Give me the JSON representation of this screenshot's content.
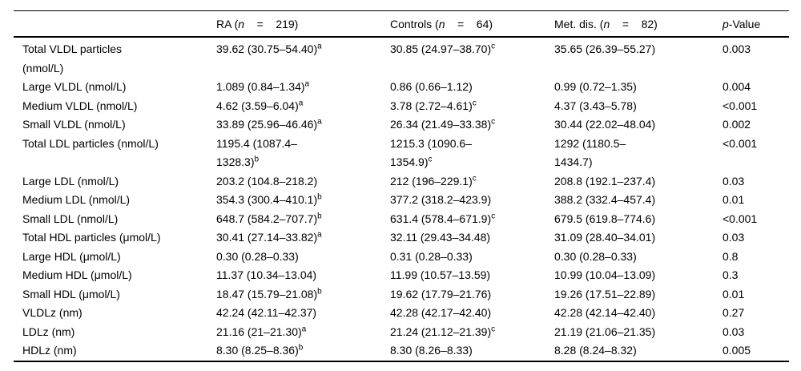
{
  "page": {
    "background_color": "#ffffff",
    "text_color": "#000000",
    "rule_color": "#000000"
  },
  "table": {
    "headers": {
      "row_label": "",
      "groups": [
        {
          "pre": "RA (",
          "n_symbol": "n",
          "eq": "    =    ",
          "count": "219)"
        },
        {
          "pre": "Controls (",
          "n_symbol": "n",
          "eq": "    =    ",
          "count": "64)"
        },
        {
          "pre": "Met. dis. (",
          "n_symbol": "n",
          "eq": "    =    ",
          "count": "82)"
        }
      ],
      "p_value": {
        "italic": "p",
        "rest": "-Value"
      }
    },
    "rows": [
      {
        "label": "Total VLDL particles\n(nmol/L)",
        "ra": {
          "v": "39.62 (30.75–54.40)",
          "sup": "a"
        },
        "controls": {
          "v": "30.85 (24.97–38.70)",
          "sup": "c"
        },
        "met": {
          "v": "35.65 (26.39–55.27)",
          "sup": ""
        },
        "p": "0.003"
      },
      {
        "label": "Large VLDL (nmol/L)",
        "ra": {
          "v": "1.089 (0.84–1.34)",
          "sup": "a"
        },
        "controls": {
          "v": "0.86 (0.66–1.12)",
          "sup": ""
        },
        "met": {
          "v": "0.99 (0.72–1.35)",
          "sup": ""
        },
        "p": "0.004"
      },
      {
        "label": "Medium VLDL (nmol/L)",
        "ra": {
          "v": "4.62 (3.59–6.04)",
          "sup": "a"
        },
        "controls": {
          "v": "3.78 (2.72–4.61)",
          "sup": "c"
        },
        "met": {
          "v": "4.37 (3.43–5.78)",
          "sup": ""
        },
        "p": "<0.001"
      },
      {
        "label": "Small VLDL (nmol/L)",
        "ra": {
          "v": "33.89 (25.96–46.46)",
          "sup": "a"
        },
        "controls": {
          "v": "26.34 (21.49–33.38)",
          "sup": "c"
        },
        "met": {
          "v": "30.44 (22.02–48.04)",
          "sup": ""
        },
        "p": "0.002"
      },
      {
        "label": "Total LDL particles (nmol/L)",
        "ra": {
          "v": "1195.4 (1087.4–\n1328.3)",
          "sup": "b"
        },
        "controls": {
          "v": "1215.3 (1090.6–\n1354.9)",
          "sup": "c"
        },
        "met": {
          "v": "1292 (1180.5–\n1434.7)",
          "sup": ""
        },
        "p": "<0.001"
      },
      {
        "label": "Large LDL (nmol/L)",
        "ra": {
          "v": "203.2 (104.8–218.2)",
          "sup": ""
        },
        "controls": {
          "v": "212 (196–229.1)",
          "sup": "c"
        },
        "met": {
          "v": "208.8 (192.1–237.4)",
          "sup": ""
        },
        "p": "0.03"
      },
      {
        "label": "Medium LDL (nmol/L)",
        "ra": {
          "v": "354.3 (300.4–410.1)",
          "sup": "b"
        },
        "controls": {
          "v": "377.2 (318.2–423.9)",
          "sup": ""
        },
        "met": {
          "v": "388.2 (332.4–457.4)",
          "sup": ""
        },
        "p": "0.01"
      },
      {
        "label": "Small LDL (nmol/L)",
        "ra": {
          "v": "648.7 (584.2–707.7)",
          "sup": "b"
        },
        "controls": {
          "v": "631.4 (578.4–671.9)",
          "sup": "c"
        },
        "met": {
          "v": "679.5 (619.8–774.6)",
          "sup": ""
        },
        "p": "<0.001"
      },
      {
        "label": "Total HDL particles (μmol/L)",
        "ra": {
          "v": "30.41 (27.14–33.82)",
          "sup": "a"
        },
        "controls": {
          "v": "32.11 (29.43–34.48)",
          "sup": ""
        },
        "met": {
          "v": "31.09 (28.40–34.01)",
          "sup": ""
        },
        "p": "0.03"
      },
      {
        "label": "Large HDL (μmol/L)",
        "ra": {
          "v": "0.30 (0.28–0.33)",
          "sup": ""
        },
        "controls": {
          "v": "0.31 (0.28–0.33)",
          "sup": ""
        },
        "met": {
          "v": "0.30 (0.28–0.33)",
          "sup": ""
        },
        "p": "0.8"
      },
      {
        "label": "Medium HDL (μmol/L)",
        "ra": {
          "v": "11.37 (10.34–13.04)",
          "sup": ""
        },
        "controls": {
          "v": "11.99 (10.57–13.59)",
          "sup": ""
        },
        "met": {
          "v": "10.99 (10.04–13.09)",
          "sup": ""
        },
        "p": "0.3"
      },
      {
        "label": "Small HDL (μmol/L)",
        "ra": {
          "v": "18.47 (15.79–21.08)",
          "sup": "b"
        },
        "controls": {
          "v": "19.62 (17.79–21.76)",
          "sup": ""
        },
        "met": {
          "v": "19.26 (17.51–22.89)",
          "sup": ""
        },
        "p": "0.01"
      },
      {
        "label": "VLDLz (nm)",
        "ra": {
          "v": "42.24 (42.11–42.37)",
          "sup": ""
        },
        "controls": {
          "v": "42.28 (42.17–42.40)",
          "sup": ""
        },
        "met": {
          "v": "42.28 (42.14–42.40)",
          "sup": ""
        },
        "p": "0.27"
      },
      {
        "label": "LDLz (nm)",
        "ra": {
          "v": "21.16 (21–21.30)",
          "sup": "a"
        },
        "controls": {
          "v": "21.24 (21.12–21.39)",
          "sup": "c"
        },
        "met": {
          "v": "21.19 (21.06–21.35)",
          "sup": ""
        },
        "p": "0.03"
      },
      {
        "label": "HDLz (nm)",
        "ra": {
          "v": "8.30 (8.25–8.36)",
          "sup": "b"
        },
        "controls": {
          "v": "8.30 (8.26–8.33)",
          "sup": ""
        },
        "met": {
          "v": "8.28 (8.24–8.32)",
          "sup": ""
        },
        "p": "0.005"
      }
    ]
  }
}
